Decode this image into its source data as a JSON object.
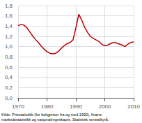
{
  "chart_data": {
    "type": "line",
    "caption": "Kilde: Prisstatistikk (for boligpriser fra og med 1992), finans-\nmarkedsstatistikk og nasjonalregnskapet, Statistisk sentralbyrå.",
    "x": [
      1970,
      1971,
      1972,
      1973,
      1974,
      1975,
      1976,
      1977,
      1978,
      1979,
      1980,
      1981,
      1982,
      1983,
      1984,
      1985,
      1986,
      1987,
      1988,
      1989,
      1990,
      1991,
      1992,
      1993,
      1994,
      1995,
      1996,
      1997,
      1998,
      1999,
      2000,
      2001,
      2002,
      2003,
      2004,
      2005,
      2006,
      2007,
      2008,
      2009,
      2010
    ],
    "values": [
      1.41,
      1.43,
      1.42,
      1.37,
      1.29,
      1.21,
      1.14,
      1.08,
      1.01,
      0.95,
      0.9,
      0.87,
      0.86,
      0.87,
      0.91,
      0.97,
      1.02,
      1.06,
      1.08,
      1.13,
      1.37,
      1.63,
      1.52,
      1.38,
      1.28,
      1.2,
      1.16,
      1.13,
      1.1,
      1.04,
      1.02,
      1.03,
      1.06,
      1.08,
      1.07,
      1.05,
      1.03,
      1.0,
      1.05,
      1.08,
      1.09
    ],
    "color": "#bb0000",
    "xlim": [
      1970,
      2010
    ],
    "xticks": [
      1970,
      1980,
      1990,
      2000,
      2010
    ],
    "ylim": [
      0.0,
      1.8
    ],
    "yticks": [
      {
        "value": 0.0,
        "label": "0,0"
      },
      {
        "value": 0.2,
        "label": "0,2"
      },
      {
        "value": 0.4,
        "label": "0,4"
      },
      {
        "value": 0.6,
        "label": "0,6"
      },
      {
        "value": 0.8,
        "label": "0,8"
      },
      {
        "value": 1.0,
        "label": "1,0"
      },
      {
        "value": 1.2,
        "label": "1,2"
      },
      {
        "value": 1.4,
        "label": "1,4"
      },
      {
        "value": 1.6,
        "label": "1,6"
      },
      {
        "value": 1.8,
        "label": "1,8"
      }
    ],
    "grid": true
  }
}
